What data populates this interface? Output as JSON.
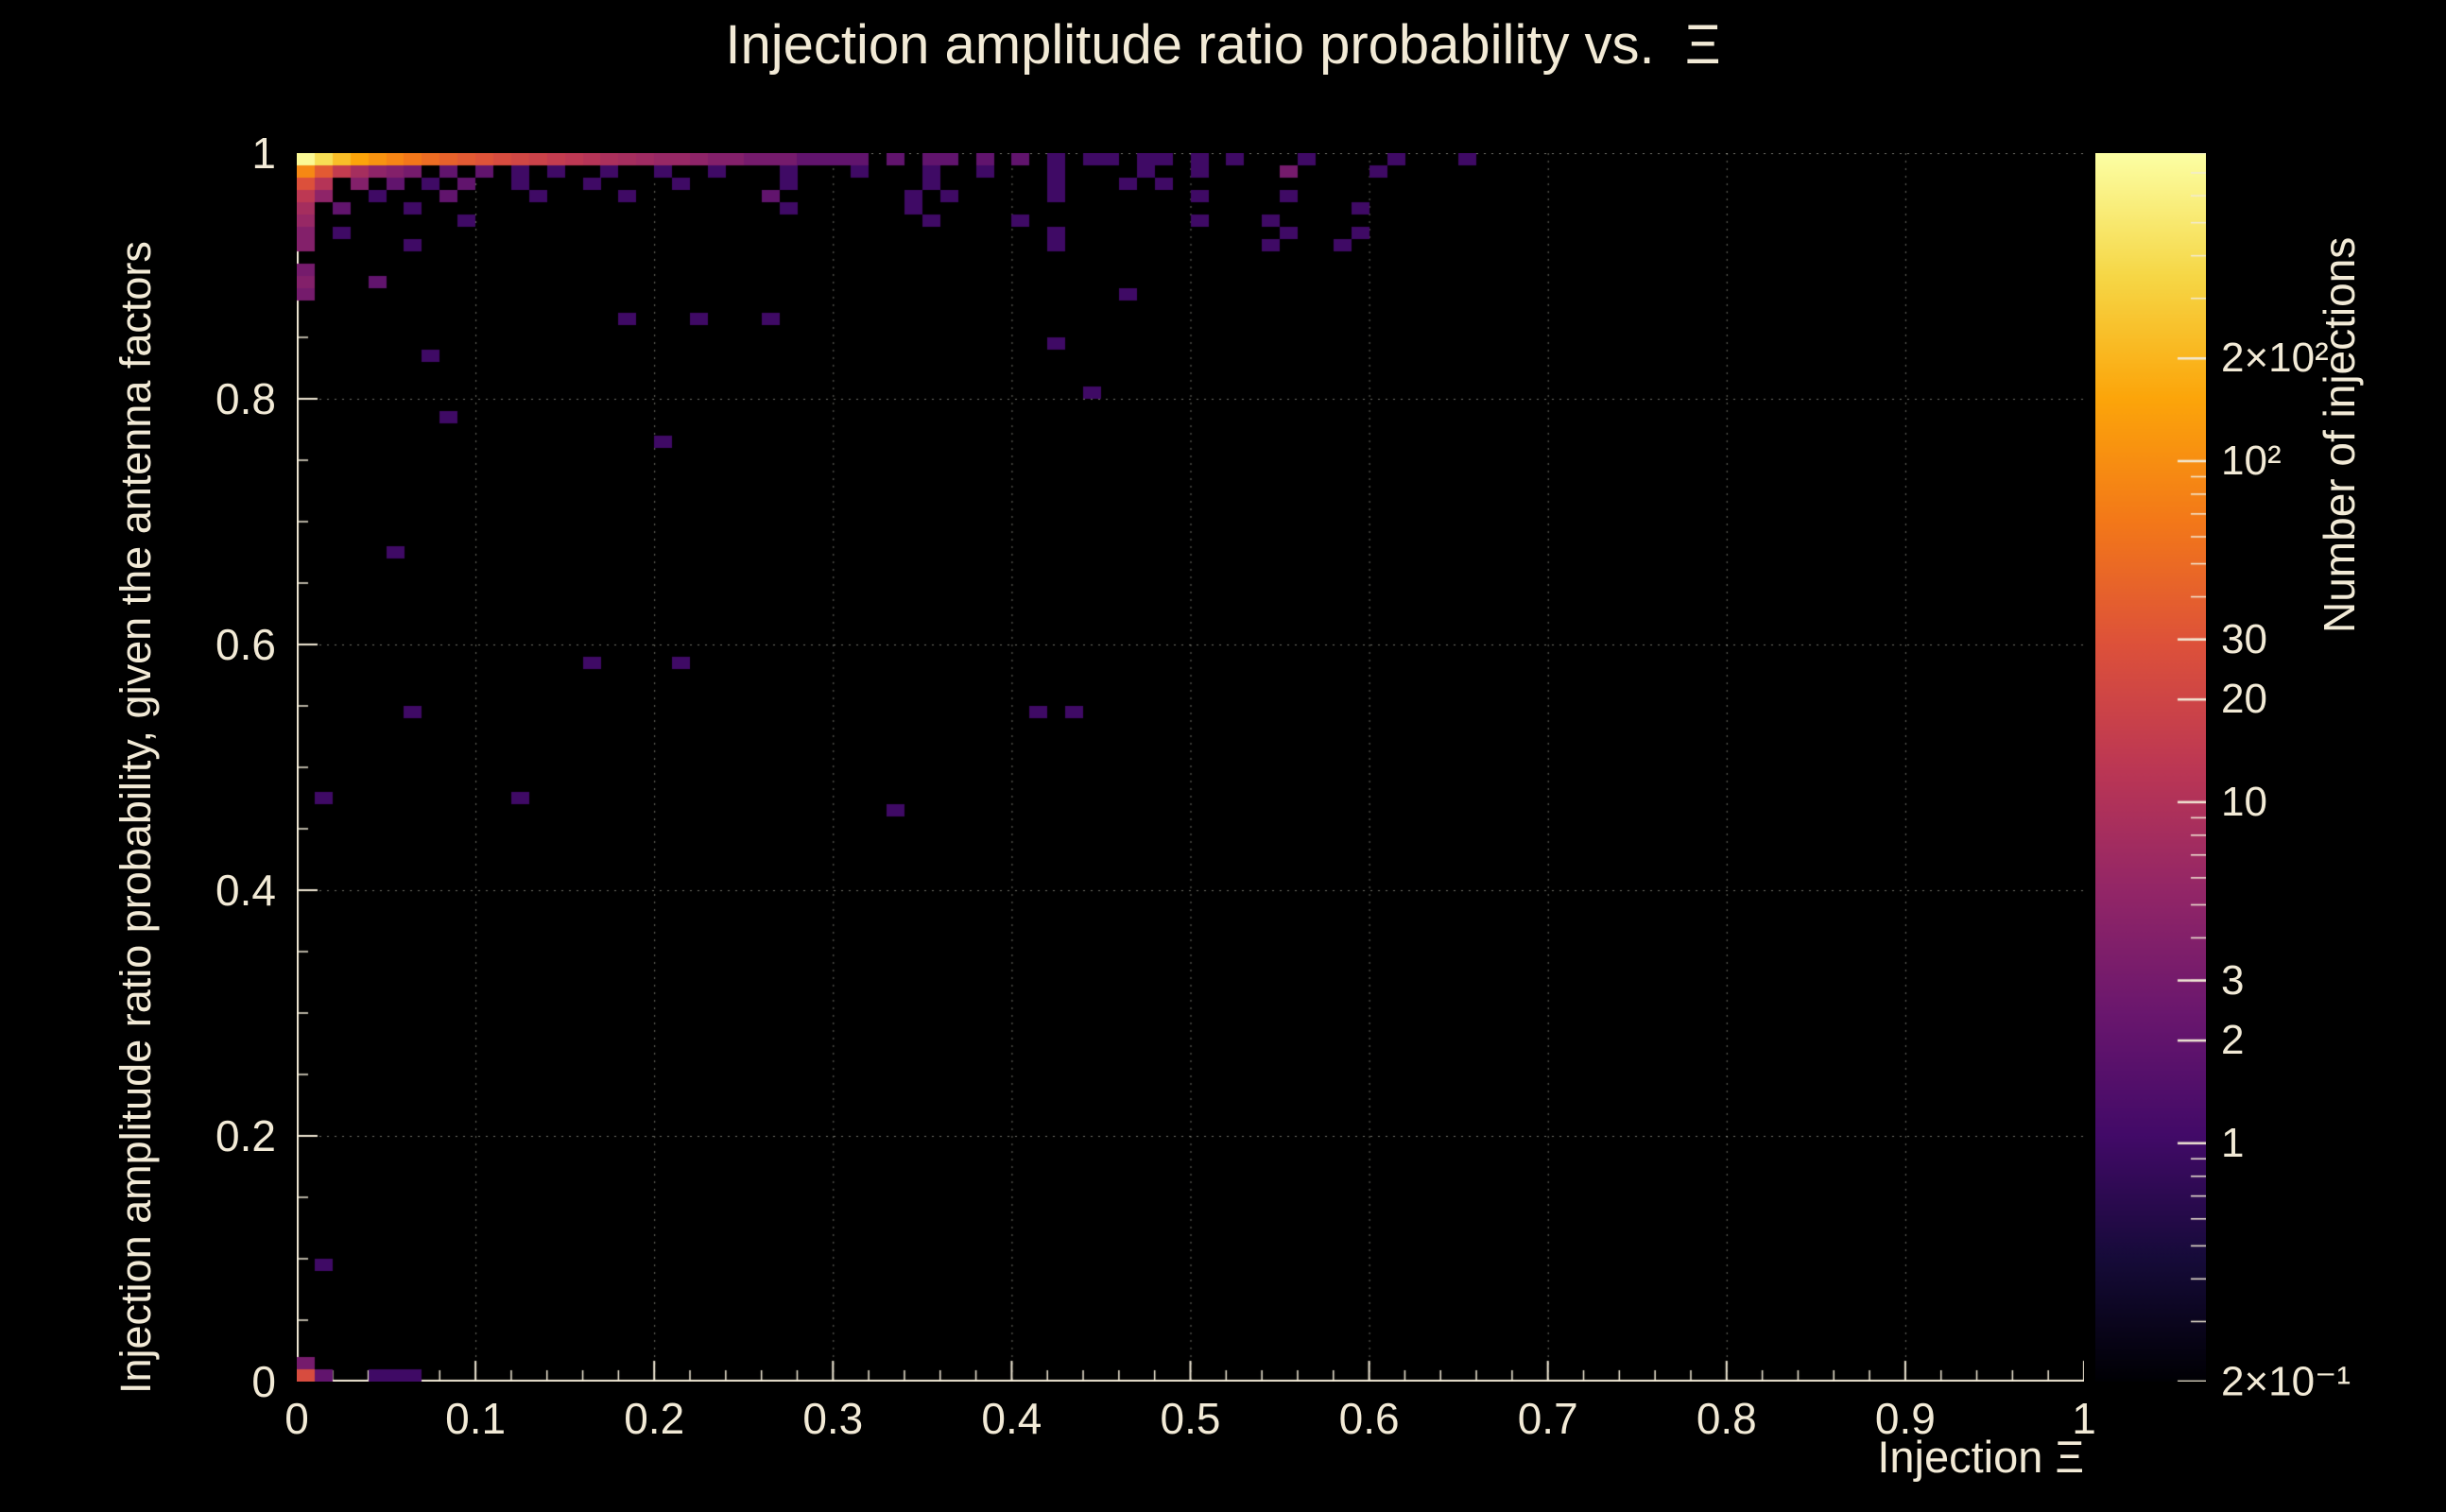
{
  "colors": {
    "background": "#000000",
    "foreground": "#f2ead6",
    "grid": "rgba(205,205,190,0.55)"
  },
  "chart_data": {
    "type": "heatmap",
    "title": "Injection amplitude ratio probability vs.  Ξ",
    "xlabel": "Injection Ξ",
    "ylabel": "Injection amplitude ratio probability, given the antenna factors",
    "zlabel": "Number of injections",
    "xlim": [
      0,
      1
    ],
    "ylim": [
      0,
      1
    ],
    "zlim": [
      0.2,
      800
    ],
    "z_scale": "log",
    "grid": true,
    "colormap": "inferno",
    "bin_size": 0.01,
    "x_ticks": [
      0,
      0.1,
      0.2,
      0.3,
      0.4,
      0.5,
      0.6,
      0.7,
      0.8,
      0.9,
      1
    ],
    "x_tick_labels": [
      "0",
      "0.1",
      "0.2",
      "0.3",
      "0.4",
      "0.5",
      "0.6",
      "0.7",
      "0.8",
      "0.9",
      "1"
    ],
    "y_ticks": [
      0,
      0.2,
      0.4,
      0.6,
      0.8,
      1
    ],
    "y_tick_labels": [
      "0",
      "0.2",
      "0.4",
      "0.6",
      "0.8",
      "1"
    ],
    "colorbar_ticks": [
      {
        "value": 200,
        "label": "2×10²"
      },
      {
        "value": 100,
        "label": "10²"
      },
      {
        "value": 30,
        "label": "30"
      },
      {
        "value": 20,
        "label": "20"
      },
      {
        "value": 10,
        "label": "10"
      },
      {
        "value": 3,
        "label": "3"
      },
      {
        "value": 2,
        "label": "2"
      },
      {
        "value": 1,
        "label": "1"
      },
      {
        "value": 0.2,
        "label": "2×10⁻¹"
      }
    ],
    "bins": [
      [
        0.0,
        0.99,
        700
      ],
      [
        0.01,
        0.99,
        400
      ],
      [
        0.02,
        0.99,
        230
      ],
      [
        0.03,
        0.99,
        150
      ],
      [
        0.04,
        0.99,
        110
      ],
      [
        0.05,
        0.99,
        85
      ],
      [
        0.06,
        0.99,
        65
      ],
      [
        0.07,
        0.99,
        52
      ],
      [
        0.08,
        0.99,
        42
      ],
      [
        0.09,
        0.99,
        35
      ],
      [
        0.1,
        0.99,
        30
      ],
      [
        0.11,
        0.99,
        25
      ],
      [
        0.12,
        0.99,
        21
      ],
      [
        0.13,
        0.99,
        18
      ],
      [
        0.14,
        0.99,
        15
      ],
      [
        0.15,
        0.99,
        13
      ],
      [
        0.16,
        0.99,
        11
      ],
      [
        0.17,
        0.99,
        9
      ],
      [
        0.18,
        0.99,
        8
      ],
      [
        0.19,
        0.99,
        7
      ],
      [
        0.2,
        0.99,
        6
      ],
      [
        0.21,
        0.99,
        6
      ],
      [
        0.22,
        0.99,
        5
      ],
      [
        0.23,
        0.99,
        4
      ],
      [
        0.24,
        0.99,
        4
      ],
      [
        0.25,
        0.99,
        3
      ],
      [
        0.26,
        0.99,
        3
      ],
      [
        0.27,
        0.99,
        3
      ],
      [
        0.28,
        0.99,
        2
      ],
      [
        0.29,
        0.99,
        2
      ],
      [
        0.3,
        0.99,
        2
      ],
      [
        0.31,
        0.99,
        2
      ],
      [
        0.33,
        0.99,
        2
      ],
      [
        0.35,
        0.99,
        2
      ],
      [
        0.36,
        0.99,
        2
      ],
      [
        0.38,
        0.99,
        2
      ],
      [
        0.4,
        0.99,
        2
      ],
      [
        0.42,
        0.99,
        1
      ],
      [
        0.44,
        0.99,
        1
      ],
      [
        0.45,
        0.99,
        1
      ],
      [
        0.47,
        0.99,
        1
      ],
      [
        0.48,
        0.99,
        1
      ],
      [
        0.5,
        0.99,
        1
      ],
      [
        0.52,
        0.99,
        1
      ],
      [
        0.56,
        0.99,
        1
      ],
      [
        0.61,
        0.99,
        1
      ],
      [
        0.65,
        0.99,
        1
      ],
      [
        0.0,
        0.98,
        90
      ],
      [
        0.01,
        0.98,
        35
      ],
      [
        0.02,
        0.98,
        15
      ],
      [
        0.03,
        0.98,
        8
      ],
      [
        0.04,
        0.98,
        5
      ],
      [
        0.05,
        0.98,
        4
      ],
      [
        0.06,
        0.98,
        3
      ],
      [
        0.08,
        0.98,
        2
      ],
      [
        0.1,
        0.98,
        2
      ],
      [
        0.12,
        0.98,
        1
      ],
      [
        0.14,
        0.98,
        1
      ],
      [
        0.17,
        0.98,
        1
      ],
      [
        0.2,
        0.98,
        1
      ],
      [
        0.23,
        0.98,
        1
      ],
      [
        0.27,
        0.98,
        1
      ],
      [
        0.31,
        0.98,
        1
      ],
      [
        0.35,
        0.98,
        1
      ],
      [
        0.38,
        0.98,
        1
      ],
      [
        0.42,
        0.98,
        1
      ],
      [
        0.47,
        0.98,
        1
      ],
      [
        0.5,
        0.98,
        1
      ],
      [
        0.55,
        0.98,
        3
      ],
      [
        0.6,
        0.98,
        1
      ],
      [
        0.0,
        0.97,
        28
      ],
      [
        0.01,
        0.97,
        11
      ],
      [
        0.03,
        0.97,
        4
      ],
      [
        0.05,
        0.97,
        2
      ],
      [
        0.07,
        0.97,
        1
      ],
      [
        0.09,
        0.97,
        2
      ],
      [
        0.12,
        0.97,
        1
      ],
      [
        0.16,
        0.97,
        1
      ],
      [
        0.21,
        0.97,
        1
      ],
      [
        0.27,
        0.97,
        1
      ],
      [
        0.35,
        0.97,
        1
      ],
      [
        0.42,
        0.97,
        1
      ],
      [
        0.46,
        0.97,
        1
      ],
      [
        0.48,
        0.97,
        1
      ],
      [
        0.0,
        0.96,
        13
      ],
      [
        0.01,
        0.96,
        5
      ],
      [
        0.04,
        0.96,
        1
      ],
      [
        0.08,
        0.96,
        2
      ],
      [
        0.13,
        0.96,
        1
      ],
      [
        0.18,
        0.96,
        1
      ],
      [
        0.26,
        0.96,
        2
      ],
      [
        0.34,
        0.96,
        1
      ],
      [
        0.36,
        0.96,
        1
      ],
      [
        0.42,
        0.96,
        1
      ],
      [
        0.5,
        0.96,
        1
      ],
      [
        0.55,
        0.96,
        1
      ],
      [
        0.0,
        0.95,
        8
      ],
      [
        0.02,
        0.95,
        2
      ],
      [
        0.06,
        0.95,
        1
      ],
      [
        0.27,
        0.95,
        1
      ],
      [
        0.34,
        0.95,
        1
      ],
      [
        0.59,
        0.95,
        1
      ],
      [
        0.0,
        0.94,
        6
      ],
      [
        0.09,
        0.94,
        1
      ],
      [
        0.35,
        0.94,
        1
      ],
      [
        0.4,
        0.94,
        1
      ],
      [
        0.5,
        0.94,
        1
      ],
      [
        0.54,
        0.94,
        1
      ],
      [
        0.0,
        0.93,
        4
      ],
      [
        0.02,
        0.93,
        1
      ],
      [
        0.42,
        0.93,
        1
      ],
      [
        0.55,
        0.93,
        1
      ],
      [
        0.59,
        0.93,
        1
      ],
      [
        0.0,
        0.92,
        4
      ],
      [
        0.06,
        0.92,
        1
      ],
      [
        0.42,
        0.92,
        1
      ],
      [
        0.54,
        0.92,
        1
      ],
      [
        0.58,
        0.92,
        1
      ],
      [
        0.0,
        0.9,
        3
      ],
      [
        0.0,
        0.89,
        4
      ],
      [
        0.04,
        0.89,
        2
      ],
      [
        0.0,
        0.88,
        3
      ],
      [
        0.46,
        0.88,
        1
      ],
      [
        0.18,
        0.86,
        1
      ],
      [
        0.22,
        0.86,
        1
      ],
      [
        0.26,
        0.86,
        1
      ],
      [
        0.42,
        0.84,
        1
      ],
      [
        0.07,
        0.83,
        1
      ],
      [
        0.44,
        0.8,
        1
      ],
      [
        0.08,
        0.78,
        1
      ],
      [
        0.2,
        0.76,
        1
      ],
      [
        0.05,
        0.67,
        1
      ],
      [
        0.16,
        0.58,
        1
      ],
      [
        0.21,
        0.58,
        1
      ],
      [
        0.06,
        0.54,
        1
      ],
      [
        0.41,
        0.54,
        1
      ],
      [
        0.43,
        0.54,
        1
      ],
      [
        0.01,
        0.47,
        1
      ],
      [
        0.12,
        0.47,
        1
      ],
      [
        0.33,
        0.46,
        1
      ],
      [
        0.01,
        0.09,
        1
      ],
      [
        0.0,
        0.01,
        3
      ],
      [
        0.0,
        0.0,
        25
      ],
      [
        0.01,
        0.0,
        2
      ],
      [
        0.04,
        0.0,
        1
      ],
      [
        0.05,
        0.0,
        1
      ],
      [
        0.06,
        0.0,
        1
      ]
    ]
  }
}
